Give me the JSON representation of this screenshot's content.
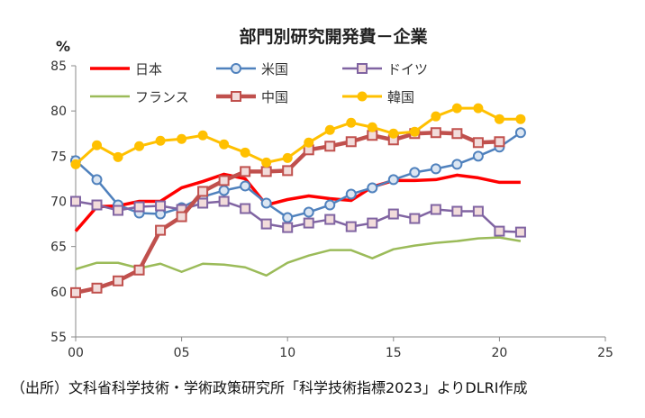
{
  "chart_data": {
    "type": "line",
    "title": "部門別研究開発費－企業",
    "ylabel": "%",
    "xlabel": "",
    "source": "（出所）文科省科学技術・学術政策研究所「科学技術指標2023」よりDLRI作成",
    "xlim": [
      0,
      25
    ],
    "ylim": [
      55,
      85
    ],
    "x_ticks": [
      "00",
      "05",
      "10",
      "15",
      "20",
      "25"
    ],
    "y_ticks": [
      "55",
      "60",
      "65",
      "70",
      "75",
      "80",
      "85"
    ],
    "grid": false,
    "legend": "top",
    "x": [
      0,
      1,
      2,
      3,
      4,
      5,
      6,
      7,
      8,
      9,
      10,
      11,
      12,
      13,
      14,
      15,
      16,
      17,
      18,
      19,
      20,
      21
    ],
    "series": [
      {
        "name": "日本",
        "color": "#ff0000",
        "marker": "none",
        "width": 3.5,
        "values": [
          66.7,
          69.4,
          69.5,
          70.0,
          70.0,
          71.5,
          72.2,
          73.0,
          72.5,
          69.6,
          70.2,
          70.6,
          70.3,
          70.1,
          71.6,
          72.3,
          72.3,
          72.4,
          72.9,
          72.6,
          72.1,
          72.1
        ]
      },
      {
        "name": "米国",
        "color": "#4f81bd",
        "marker": "circle",
        "width": 2.5,
        "values": [
          74.5,
          72.4,
          69.6,
          68.7,
          68.6,
          69.3,
          70.5,
          71.2,
          71.7,
          69.8,
          68.2,
          68.8,
          69.6,
          70.8,
          71.5,
          72.4,
          73.2,
          73.6,
          74.1,
          75.0,
          76.0,
          77.6
        ]
      },
      {
        "name": "ドイツ",
        "color": "#8064a2",
        "marker": "square",
        "width": 2.5,
        "values": [
          70.0,
          69.6,
          69.0,
          69.4,
          69.5,
          69.1,
          69.8,
          70.0,
          69.2,
          67.5,
          67.1,
          67.6,
          68.0,
          67.2,
          67.6,
          68.6,
          68.1,
          69.1,
          68.9,
          68.9,
          66.7,
          66.6
        ]
      },
      {
        "name": "フランス",
        "color": "#9bbb59",
        "marker": "none",
        "width": 2.5,
        "values": [
          62.5,
          63.2,
          63.2,
          62.6,
          63.1,
          62.2,
          63.1,
          63.0,
          62.7,
          61.8,
          63.2,
          64.0,
          64.6,
          64.6,
          63.7,
          64.7,
          65.1,
          65.4,
          65.6,
          65.9,
          66.0,
          65.6
        ]
      },
      {
        "name": "中国",
        "color": "#c0504d",
        "marker": "square",
        "width": 4.5,
        "values": [
          59.9,
          60.4,
          61.2,
          62.4,
          66.8,
          68.3,
          71.1,
          72.3,
          73.3,
          73.3,
          73.4,
          75.7,
          76.1,
          76.6,
          77.3,
          76.8,
          77.5,
          77.6,
          77.5,
          76.5,
          76.6,
          null
        ]
      },
      {
        "name": "韓国",
        "color": "#ffc000",
        "marker": "dot",
        "width": 3,
        "values": [
          74.1,
          76.2,
          74.9,
          76.1,
          76.7,
          76.9,
          77.3,
          76.3,
          75.4,
          74.3,
          74.8,
          76.5,
          77.9,
          78.7,
          78.2,
          77.5,
          77.7,
          79.4,
          80.3,
          80.3,
          79.1,
          79.1
        ]
      }
    ]
  }
}
